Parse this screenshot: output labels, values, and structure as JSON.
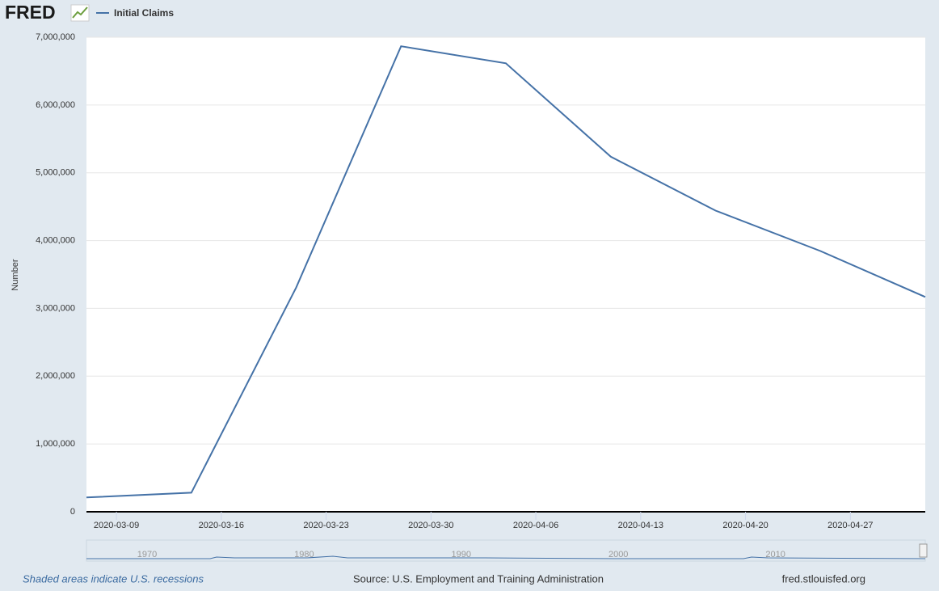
{
  "header": {
    "logo": "FRED"
  },
  "chart_data": {
    "type": "line",
    "y_label": "Number",
    "x": [
      "2020-03-07",
      "2020-03-14",
      "2020-03-21",
      "2020-03-28",
      "2020-04-04",
      "2020-04-11",
      "2020-04-18",
      "2020-04-25",
      "2020-05-02"
    ],
    "series": [
      {
        "name": "Initial Claims",
        "color": "#4572a7",
        "values": [
          211000,
          282000,
          3307000,
          6867000,
          6615000,
          5237000,
          4442000,
          3846000,
          3169000
        ]
      }
    ],
    "xlim": [
      "2020-03-07",
      "2020-05-02"
    ],
    "xticks": [
      "2020-03-09",
      "2020-03-16",
      "2020-03-23",
      "2020-03-30",
      "2020-04-06",
      "2020-04-13",
      "2020-04-20",
      "2020-04-27"
    ],
    "ylim": [
      0,
      7000000
    ],
    "yticks": [
      0,
      {
        "value": 1000000,
        "label": "1,000,000"
      },
      {
        "value": 2000000,
        "label": "2,000,000"
      },
      {
        "value": 3000000,
        "label": "3,000,000"
      },
      {
        "value": 4000000,
        "label": "4,000,000"
      },
      {
        "value": 5000000,
        "label": "5,000,000"
      },
      {
        "value": 6000000,
        "label": "6,000,000"
      },
      {
        "value": 7000000,
        "label": "7,000,000"
      }
    ],
    "grid": true
  },
  "navigator": {
    "labels": [
      "1970",
      "1980",
      "1990",
      "2000",
      "2010"
    ]
  },
  "footer": {
    "note": "Shaded areas indicate U.S. recessions",
    "source": "Source: U.S. Employment and Training Administration",
    "site": "fred.stlouisfed.org"
  }
}
